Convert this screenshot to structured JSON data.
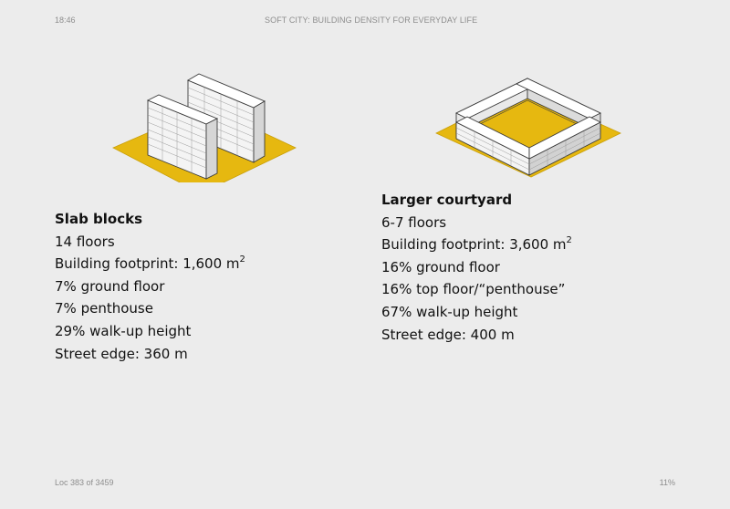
{
  "reader": {
    "time": "18:46",
    "book_title": "SOFT CITY: BUILDING DENSITY FOR EVERYDAY LIFE",
    "location": "Loc 383 of 3459",
    "progress": "11%"
  },
  "colors": {
    "background": "#ececec",
    "ground": "#e6b810",
    "building": "#f3f3f3",
    "outline": "#3a3a3a"
  },
  "slab_blocks": {
    "title": "Slab blocks",
    "floors": "14 floors",
    "footprint_label": "Building footprint: 1,600 m",
    "footprint_exponent": "2",
    "ground_floor": "7% ground floor",
    "penthouse": "7% penthouse",
    "walkup": "29% walk-up height",
    "street_edge": "Street edge: 360 m"
  },
  "larger_courtyard": {
    "title": "Larger courtyard",
    "floors": "6-7 floors",
    "footprint_label": "Building footprint: 3,600 m",
    "footprint_exponent": "2",
    "ground_floor": "16% ground floor",
    "top_floor": "16% top floor/“penthouse”",
    "walkup": "67% walk-up height",
    "street_edge": "Street edge: 400 m"
  }
}
